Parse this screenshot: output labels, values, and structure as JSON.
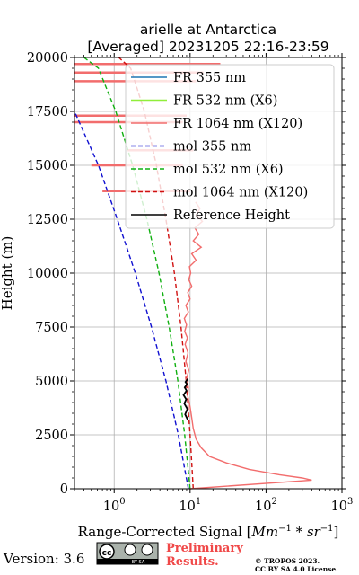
{
  "chart_data": {
    "type": "line",
    "title": "arielle at Antarctica",
    "subtitle": "[Averaged] 20231205 22:16-23:59",
    "xlabel_prefix": "Range-Corrected Signal [",
    "xlabel_math": "Mm",
    "xlabel_sup1": "−1",
    "xlabel_mid": " * sr",
    "xlabel_sup2": "−1",
    "xlabel_suffix": "]",
    "ylabel": "Height (m)",
    "xscale": "log",
    "xlim": [
      0.3,
      1000
    ],
    "ylim": [
      0,
      20000
    ],
    "grid": true,
    "legend_position": "top-right",
    "x_ticks": [
      {
        "value": 1,
        "base": "10",
        "exp": "0"
      },
      {
        "value": 10,
        "base": "10",
        "exp": "1"
      },
      {
        "value": 100,
        "base": "10",
        "exp": "2"
      },
      {
        "value": 1000,
        "base": "10",
        "exp": "3"
      }
    ],
    "y_ticks": [
      0,
      2500,
      5000,
      7500,
      10000,
      12500,
      15000,
      17500,
      20000
    ],
    "y_tick_labels": [
      "0",
      "2500",
      "5000",
      "7500",
      "10000",
      "12500",
      "15000",
      "17500",
      "20000"
    ],
    "legend": [
      {
        "label": "FR 355 nm",
        "color": "#1f77b4",
        "style": "solid"
      },
      {
        "label": "FR 532 nm (X6)",
        "color": "#90ee3a",
        "style": "solid"
      },
      {
        "label": "FR 1064 nm (X120)",
        "color": "#f26d6d",
        "style": "solid"
      },
      {
        "label": "mol 355 nm",
        "color": "#1010d0",
        "style": "dashed"
      },
      {
        "label": "mol 532 nm (X6)",
        "color": "#10b010",
        "style": "dashed"
      },
      {
        "label": "mol 1064 nm (X120)",
        "color": "#d01010",
        "style": "dashed"
      },
      {
        "label": "Reference Height",
        "color": "#000000",
        "style": "solid"
      }
    ],
    "series": [
      {
        "name": "mol 355 nm",
        "color": "#1010d0",
        "style": "dashed",
        "x": [
          9.5,
          7.0,
          4.8,
          3.1,
          1.9,
          1.1,
          0.62,
          0.3
        ],
        "y": [
          0,
          2500,
          5000,
          7500,
          10000,
          12500,
          15000,
          17500
        ]
      },
      {
        "name": "mol 532 nm (X6)",
        "color": "#10b010",
        "style": "dashed",
        "x": [
          10,
          8.5,
          6.9,
          5.3,
          3.9,
          2.7,
          1.75,
          1.05,
          0.62,
          0.4
        ],
        "y": [
          0,
          2500,
          5000,
          7500,
          10000,
          12500,
          15000,
          17500,
          19500,
          20000
        ]
      },
      {
        "name": "mol 1064 nm (X120)",
        "color": "#d01010",
        "style": "dashed",
        "x": [
          11,
          10,
          8.9,
          7.6,
          6.2,
          4.8,
          3.6,
          2.5,
          1.65,
          1.15
        ],
        "y": [
          0,
          2500,
          5000,
          7500,
          10000,
          12500,
          15000,
          17500,
          19500,
          20000
        ]
      },
      {
        "name": "FR 1064 nm (X120)",
        "color": "#f26d6d",
        "style": "solid",
        "x": [
          10,
          400,
          300,
          150,
          60,
          30,
          18,
          14,
          12,
          11,
          10.5,
          10,
          9.3,
          9.5,
          9.0,
          9.6,
          8.8,
          9.4,
          8.6,
          9.2,
          8.5,
          9.0,
          8.4,
          9.5,
          8.8,
          10.0,
          9.3,
          10.5,
          9.6,
          10.2,
          9.8,
          12.0,
          10.5,
          14.0,
          11.0,
          13.0,
          11.5,
          14.5,
          12.0,
          13.5,
          11.8
        ],
        "y": [
          0,
          400,
          500,
          650,
          900,
          1200,
          1500,
          1900,
          2300,
          2800,
          3300,
          3800,
          4300,
          4700,
          5100,
          5500,
          5900,
          6300,
          6700,
          7000,
          7300,
          7600,
          7900,
          8200,
          8500,
          8800,
          9100,
          9400,
          9700,
          10000,
          10300,
          10600,
          10900,
          11200,
          11500,
          11800,
          12100,
          12400,
          12700,
          13000,
          13300
        ]
      },
      {
        "name": "Reference Height",
        "color": "#000000",
        "style": "solid",
        "x": [
          9.3,
          8.6,
          9.2,
          8.4,
          8.9,
          8.2,
          9.0,
          8.5,
          9.1,
          8.7,
          9.4
        ],
        "y": [
          3200,
          3450,
          3700,
          3950,
          4150,
          4350,
          4550,
          4700,
          4850,
          4950,
          5100
        ]
      }
    ],
    "spikes": [
      {
        "x": [
          0.3,
          25
        ],
        "y": 19700
      },
      {
        "x": [
          0.3,
          15
        ],
        "y": 19300
      },
      {
        "x": [
          0.3,
          12
        ],
        "y": 18900
      },
      {
        "x": [
          0.3,
          9
        ],
        "y": 17300
      },
      {
        "x": [
          0.3,
          8
        ],
        "y": 17000
      },
      {
        "x": [
          1.5,
          11
        ],
        "y": 15700
      },
      {
        "x": [
          0.5,
          8
        ],
        "y": 15000
      },
      {
        "x": [
          0.7,
          10
        ],
        "y": 13800
      }
    ]
  },
  "footer": {
    "version": "Version: 3.6",
    "prelim_line1": "Preliminary",
    "prelim_line2": "Results.",
    "copyright_line1": "© TROPOS 2023.",
    "copyright_line2": "CC BY SA 4.0 License.",
    "cc_badge_text": "BY   SA"
  }
}
